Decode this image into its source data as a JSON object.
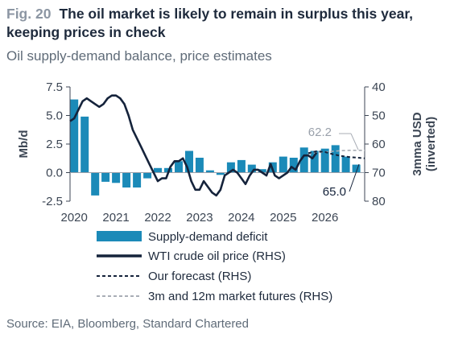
{
  "header": {
    "fig_label": "Fig. 20",
    "title": "The oil market is likely to remain in surplus this year, keeping prices in check",
    "subtitle": "Oil supply-demand balance, price estimates"
  },
  "source": "Source: EIA, Bloomberg, Standard Chartered",
  "colors": {
    "bar": "#1b8ab8",
    "wti": "#15233b",
    "forecast": "#15233b",
    "futures": "#a9aeb6",
    "axis": "#3c4654"
  },
  "chart_data": {
    "type": "bar+line",
    "title": "The oil market is likely to remain in surplus this year, keeping prices in check",
    "subtitle": "Oil supply-demand balance, price estimates",
    "ylabel_left": "Mb/d",
    "ylabel_right": "3mma USD (inverted)",
    "ylim_left": [
      -2.5,
      7.5
    ],
    "ylim_right_inverted": [
      40,
      80
    ],
    "yticks_left": [
      "-2.5",
      "0.0",
      "2.5",
      "5.0",
      "7.5"
    ],
    "yticks_right": [
      "40",
      "50",
      "60",
      "70",
      "80"
    ],
    "x_ticks": [
      "2020",
      "2021",
      "2022",
      "2023",
      "2024",
      "2025",
      "2026"
    ],
    "x_range": [
      2019.9,
      2026.95
    ],
    "bars": {
      "name": "Supply-demand deficit",
      "quarters": [
        "2020Q1",
        "2020Q2",
        "2020Q3",
        "2020Q4",
        "2021Q1",
        "2021Q2",
        "2021Q3",
        "2021Q4",
        "2022Q1",
        "2022Q2",
        "2022Q3",
        "2022Q4",
        "2023Q1",
        "2023Q2",
        "2023Q3",
        "2023Q4",
        "2024Q1",
        "2024Q2",
        "2024Q3",
        "2024Q4",
        "2025Q1",
        "2025Q2",
        "2025Q3",
        "2025Q4",
        "2026Q1",
        "2026Q2",
        "2026Q3",
        "2026Q4"
      ],
      "x": [
        2020.0,
        2020.25,
        2020.5,
        2020.75,
        2021.0,
        2021.25,
        2021.5,
        2021.75,
        2022.0,
        2022.25,
        2022.5,
        2022.75,
        2023.0,
        2023.25,
        2023.5,
        2023.75,
        2024.0,
        2024.25,
        2024.5,
        2024.75,
        2025.0,
        2025.25,
        2025.5,
        2025.75,
        2026.0,
        2026.25,
        2026.5,
        2026.75
      ],
      "values": [
        6.4,
        4.9,
        -2.0,
        -0.8,
        -0.9,
        -1.3,
        -1.3,
        -0.5,
        0.4,
        0.4,
        1.0,
        1.9,
        1.3,
        0.2,
        -0.2,
        0.9,
        1.1,
        0.7,
        0.3,
        0.9,
        1.4,
        1.3,
        2.2,
        1.9,
        2.1,
        2.4,
        1.4,
        0.7
      ]
    },
    "wti": {
      "name": "WTI crude oil price (RHS)",
      "x": [
        2019.9,
        2020.0,
        2020.1,
        2020.2,
        2020.3,
        2020.4,
        2020.5,
        2020.6,
        2020.7,
        2020.8,
        2020.9,
        2021.0,
        2021.1,
        2021.2,
        2021.3,
        2021.4,
        2021.5,
        2021.6,
        2021.7,
        2021.8,
        2021.9,
        2022.0,
        2022.1,
        2022.2,
        2022.3,
        2022.4,
        2022.5,
        2022.6,
        2022.7,
        2022.8,
        2022.9,
        2023.0,
        2023.1,
        2023.2,
        2023.3,
        2023.4,
        2023.5,
        2023.6,
        2023.7,
        2023.8,
        2023.9,
        2024.0,
        2024.1,
        2024.2,
        2024.3,
        2024.4,
        2024.5,
        2024.6,
        2024.7,
        2024.8,
        2024.9,
        2025.0,
        2025.1,
        2025.2,
        2025.3,
        2025.4,
        2025.5,
        2025.6,
        2025.7,
        2025.8
      ],
      "values": [
        52,
        51,
        48,
        45,
        44,
        45,
        46,
        47,
        46,
        44,
        43,
        43,
        44,
        46,
        50,
        55,
        58,
        61,
        64,
        67,
        70,
        73,
        72,
        72,
        68,
        66,
        66,
        65,
        68,
        73,
        76,
        76,
        73,
        75,
        77,
        78,
        76,
        71,
        70,
        69,
        70,
        72,
        74,
        71,
        69,
        69,
        70,
        71,
        67,
        71,
        72,
        71,
        70,
        68,
        69,
        66,
        64,
        64,
        65,
        63
      ]
    },
    "forecast": {
      "name": "Our forecast (RHS)",
      "x": [
        2025.6,
        2025.8,
        2026.0,
        2026.2,
        2026.4,
        2026.6,
        2026.8,
        2026.95
      ],
      "values": [
        63.2,
        62.5,
        62.8,
        63.6,
        64.2,
        64.6,
        64.8,
        65.0
      ],
      "end_label": "65.0"
    },
    "futures": {
      "name": "3m and 12m market futures (RHS)",
      "x": [
        2025.6,
        2025.8,
        2026.0,
        2026.2,
        2026.4,
        2026.6,
        2026.8,
        2026.95
      ],
      "values": [
        63.5,
        63.0,
        62.8,
        62.5,
        62.3,
        62.2,
        62.2,
        62.2
      ],
      "end_label": "62.2"
    },
    "legend_position": "bottom"
  }
}
